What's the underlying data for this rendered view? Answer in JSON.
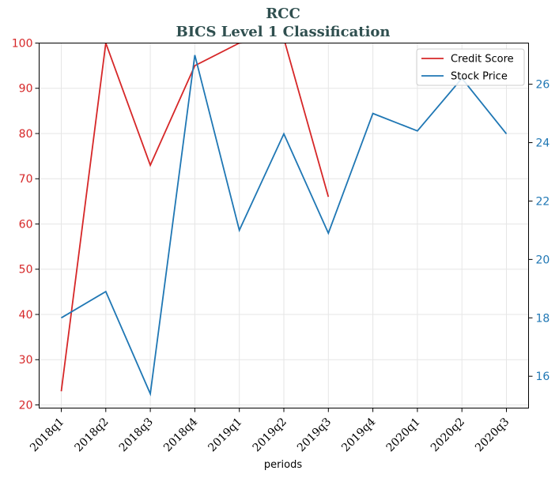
{
  "chart_data": {
    "type": "line",
    "title": "RCC",
    "subtitle": "BICS Level 1 Classification",
    "xlabel": "periods",
    "x": [
      "2018q1",
      "2018q2",
      "2018q3",
      "2018q4",
      "2019q1",
      "2019q2",
      "2019q3",
      "2019q4",
      "2020q1",
      "2020q2",
      "2020q3"
    ],
    "series": [
      {
        "name": "Credit Score",
        "axis": "left",
        "color": "#d62728",
        "values": [
          23,
          100,
          73,
          95,
          100,
          101,
          66,
          null,
          null,
          null,
          null
        ]
      },
      {
        "name": "Stock Price",
        "axis": "right",
        "color": "#1f77b4",
        "values": [
          18.0,
          18.9,
          15.4,
          27.0,
          21.0,
          24.3,
          20.9,
          25.0,
          24.4,
          26.2,
          24.3
        ]
      }
    ],
    "y_left": {
      "range": [
        19.3,
        100
      ],
      "ticks": [
        20,
        30,
        40,
        50,
        60,
        70,
        80,
        90,
        100
      ],
      "color": "#d62728"
    },
    "y_right": {
      "range": [
        14.91,
        27.41
      ],
      "ticks": [
        16,
        18,
        20,
        22,
        24,
        26
      ],
      "color": "#1f77b4"
    },
    "grid": true,
    "legend": "top-right"
  }
}
